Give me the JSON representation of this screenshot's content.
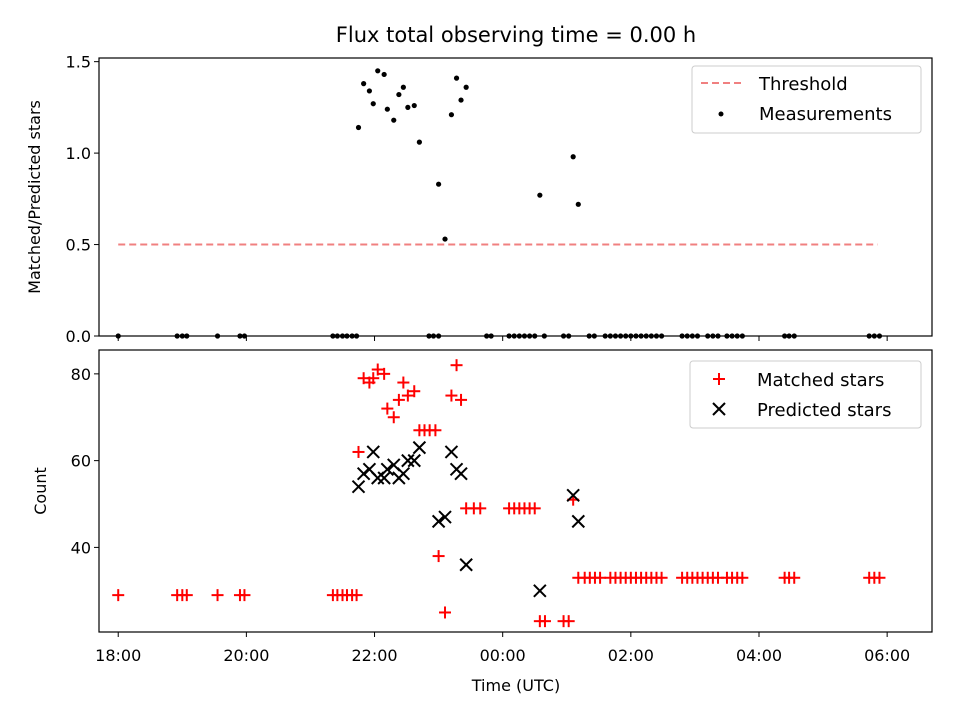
{
  "chart_data": [
    {
      "type": "scatter",
      "title": "Flux total observing time = 0.00 h",
      "ylabel": "Matched/Predicted stars",
      "xlabel": "",
      "xlim": [
        -0.3,
        12.7
      ],
      "ylim": [
        0,
        1.52
      ],
      "yticks": [
        0.0,
        0.5,
        1.0,
        1.5
      ],
      "ytick_labels": [
        "0.0",
        "0.5",
        "1.0",
        "1.5"
      ],
      "threshold": {
        "y": 0.5,
        "x_start": 0.0,
        "x_end": 11.85,
        "color": "#f08080"
      },
      "legend": {
        "position": "top-right",
        "entries": [
          "Threshold",
          "Measurements"
        ]
      },
      "series": [
        {
          "name": "Measurements",
          "color": "#000000",
          "points": [
            [
              0.0,
              0
            ],
            [
              0.92,
              0
            ],
            [
              1.0,
              0
            ],
            [
              1.07,
              0
            ],
            [
              1.55,
              0
            ],
            [
              1.9,
              0
            ],
            [
              1.97,
              0
            ],
            [
              3.35,
              0
            ],
            [
              3.42,
              0
            ],
            [
              3.5,
              0
            ],
            [
              3.57,
              0
            ],
            [
              3.65,
              0
            ],
            [
              3.72,
              0
            ],
            [
              4.85,
              0
            ],
            [
              4.92,
              0
            ],
            [
              5.0,
              0
            ],
            [
              5.75,
              0
            ],
            [
              5.82,
              0
            ],
            [
              6.1,
              0
            ],
            [
              6.18,
              0
            ],
            [
              6.26,
              0
            ],
            [
              6.34,
              0
            ],
            [
              6.42,
              0
            ],
            [
              6.5,
              0
            ],
            [
              6.65,
              0
            ],
            [
              6.95,
              0
            ],
            [
              7.03,
              0
            ],
            [
              7.35,
              0
            ],
            [
              7.43,
              0
            ],
            [
              7.6,
              0
            ],
            [
              7.68,
              0
            ],
            [
              7.76,
              0
            ],
            [
              7.84,
              0
            ],
            [
              7.92,
              0
            ],
            [
              8.0,
              0
            ],
            [
              8.08,
              0
            ],
            [
              8.16,
              0
            ],
            [
              8.24,
              0
            ],
            [
              8.32,
              0
            ],
            [
              8.4,
              0
            ],
            [
              8.48,
              0
            ],
            [
              8.8,
              0
            ],
            [
              8.88,
              0
            ],
            [
              8.96,
              0
            ],
            [
              9.04,
              0
            ],
            [
              9.2,
              0
            ],
            [
              9.28,
              0
            ],
            [
              9.36,
              0
            ],
            [
              9.5,
              0
            ],
            [
              9.58,
              0
            ],
            [
              9.66,
              0
            ],
            [
              9.74,
              0
            ],
            [
              10.4,
              0
            ],
            [
              10.47,
              0
            ],
            [
              10.55,
              0
            ],
            [
              11.72,
              0
            ],
            [
              11.8,
              0
            ],
            [
              11.88,
              0
            ],
            [
              3.75,
              1.14
            ],
            [
              3.83,
              1.38
            ],
            [
              3.92,
              1.34
            ],
            [
              3.98,
              1.27
            ],
            [
              4.05,
              1.45
            ],
            [
              4.15,
              1.43
            ],
            [
              4.2,
              1.24
            ],
            [
              4.3,
              1.18
            ],
            [
              4.38,
              1.32
            ],
            [
              4.45,
              1.36
            ],
            [
              4.52,
              1.25
            ],
            [
              4.62,
              1.26
            ],
            [
              4.7,
              1.06
            ],
            [
              5.0,
              0.83
            ],
            [
              5.1,
              0.53
            ],
            [
              5.2,
              1.21
            ],
            [
              5.28,
              1.41
            ],
            [
              5.35,
              1.29
            ],
            [
              5.43,
              1.36
            ],
            [
              6.58,
              0.77
            ],
            [
              7.1,
              0.98
            ],
            [
              7.18,
              0.72
            ]
          ]
        }
      ]
    },
    {
      "type": "scatter",
      "title": "",
      "ylabel": "Count",
      "xlabel": "Time (UTC)",
      "xlim": [
        -0.3,
        12.7
      ],
      "ylim": [
        20.5,
        85.5
      ],
      "yticks": [
        40,
        60,
        80
      ],
      "ytick_labels": [
        "40",
        "60",
        "80"
      ],
      "xticks": [
        0,
        2,
        4,
        6,
        8,
        10,
        12
      ],
      "xtick_labels": [
        "18:00",
        "20:00",
        "22:00",
        "00:00",
        "02:00",
        "04:00",
        "06:00"
      ],
      "legend": {
        "position": "top-right",
        "entries": [
          "Matched stars",
          "Predicted stars"
        ]
      },
      "series": [
        {
          "name": "Matched stars",
          "marker": "plus",
          "color": "#ff0000",
          "points": [
            [
              0.0,
              29
            ],
            [
              0.92,
              29
            ],
            [
              1.0,
              29
            ],
            [
              1.07,
              29
            ],
            [
              1.55,
              29
            ],
            [
              1.9,
              29
            ],
            [
              1.97,
              29
            ],
            [
              3.35,
              29
            ],
            [
              3.42,
              29
            ],
            [
              3.5,
              29
            ],
            [
              3.57,
              29
            ],
            [
              3.65,
              29
            ],
            [
              3.72,
              29
            ],
            [
              3.75,
              62
            ],
            [
              3.83,
              79
            ],
            [
              3.92,
              78
            ],
            [
              3.98,
              79
            ],
            [
              4.05,
              81
            ],
            [
              4.15,
              80
            ],
            [
              4.2,
              72
            ],
            [
              4.3,
              70
            ],
            [
              4.38,
              74
            ],
            [
              4.45,
              78
            ],
            [
              4.52,
              75
            ],
            [
              4.62,
              76
            ],
            [
              4.7,
              67
            ],
            [
              4.78,
              67
            ],
            [
              4.86,
              67
            ],
            [
              4.95,
              67
            ],
            [
              5.0,
              38
            ],
            [
              5.1,
              25
            ],
            [
              5.2,
              75
            ],
            [
              5.28,
              82
            ],
            [
              5.35,
              74
            ],
            [
              5.43,
              49
            ],
            [
              5.55,
              49
            ],
            [
              5.65,
              49
            ],
            [
              6.1,
              49
            ],
            [
              6.18,
              49
            ],
            [
              6.26,
              49
            ],
            [
              6.34,
              49
            ],
            [
              6.42,
              49
            ],
            [
              6.5,
              49
            ],
            [
              6.58,
              23
            ],
            [
              6.66,
              23
            ],
            [
              6.95,
              23
            ],
            [
              7.03,
              23
            ],
            [
              7.1,
              51
            ],
            [
              7.18,
              33
            ],
            [
              7.28,
              33
            ],
            [
              7.36,
              33
            ],
            [
              7.44,
              33
            ],
            [
              7.52,
              33
            ],
            [
              7.68,
              33
            ],
            [
              7.76,
              33
            ],
            [
              7.84,
              33
            ],
            [
              7.92,
              33
            ],
            [
              8.0,
              33
            ],
            [
              8.08,
              33
            ],
            [
              8.16,
              33
            ],
            [
              8.24,
              33
            ],
            [
              8.32,
              33
            ],
            [
              8.4,
              33
            ],
            [
              8.48,
              33
            ],
            [
              8.8,
              33
            ],
            [
              8.88,
              33
            ],
            [
              8.96,
              33
            ],
            [
              9.04,
              33
            ],
            [
              9.12,
              33
            ],
            [
              9.2,
              33
            ],
            [
              9.28,
              33
            ],
            [
              9.36,
              33
            ],
            [
              9.5,
              33
            ],
            [
              9.58,
              33
            ],
            [
              9.66,
              33
            ],
            [
              9.74,
              33
            ],
            [
              10.4,
              33
            ],
            [
              10.47,
              33
            ],
            [
              10.55,
              33
            ],
            [
              11.72,
              33
            ],
            [
              11.8,
              33
            ],
            [
              11.88,
              33
            ]
          ]
        },
        {
          "name": "Predicted stars",
          "marker": "x",
          "color": "#000000",
          "points": [
            [
              3.75,
              54
            ],
            [
              3.83,
              57
            ],
            [
              3.92,
              58
            ],
            [
              3.98,
              62
            ],
            [
              4.05,
              56
            ],
            [
              4.15,
              56
            ],
            [
              4.2,
              58
            ],
            [
              4.3,
              59
            ],
            [
              4.38,
              56
            ],
            [
              4.45,
              57
            ],
            [
              4.52,
              60
            ],
            [
              4.62,
              60
            ],
            [
              4.7,
              63
            ],
            [
              5.0,
              46
            ],
            [
              5.1,
              47
            ],
            [
              5.2,
              62
            ],
            [
              5.28,
              58
            ],
            [
              5.35,
              57
            ],
            [
              5.43,
              36
            ],
            [
              6.58,
              30
            ],
            [
              7.1,
              52
            ],
            [
              7.18,
              46
            ]
          ]
        }
      ]
    }
  ]
}
